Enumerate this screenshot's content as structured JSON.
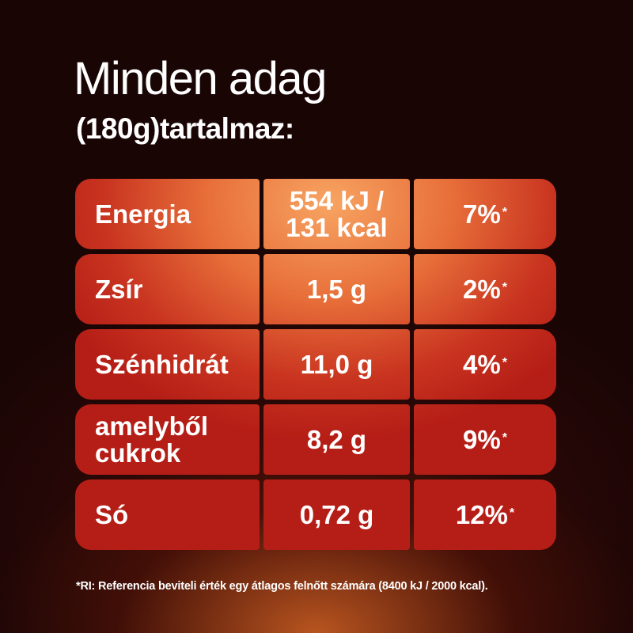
{
  "header": {
    "title": "Minden adag",
    "subtitle": "(180g)tartalmaz:"
  },
  "table": {
    "rows": [
      {
        "label": "Energia",
        "amount": "554 kJ / 131 kcal",
        "percent": "7%",
        "mark": "*"
      },
      {
        "label": "Zsír",
        "amount": "1,5 g",
        "percent": "2%",
        "mark": "*"
      },
      {
        "label": "Szénhidrát",
        "amount": "11,0 g",
        "percent": "4%",
        "mark": "*"
      },
      {
        "label": "amelyből cukrok",
        "amount": "8,2 g",
        "percent": "9%",
        "mark": "*"
      },
      {
        "label": "Só",
        "amount": "0,72 g",
        "percent": "12%",
        "mark": "*"
      }
    ]
  },
  "footnote": "*RI: Referencia beviteli érték egy átlagos felnőtt számára (8400 kJ / 2000 kcal)."
}
